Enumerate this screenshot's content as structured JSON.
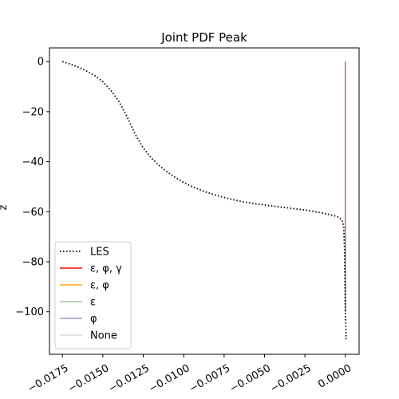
{
  "chart_data": {
    "type": "line",
    "title": "Joint PDF Peak",
    "xlabel": "",
    "ylabel": "z",
    "xlim": [
      -0.0183,
      0.00085
    ],
    "ylim": [
      -117,
      5.5
    ],
    "xticks": [
      -0.0175,
      -0.015,
      -0.0125,
      -0.01,
      -0.0075,
      -0.005,
      -0.0025,
      0.0
    ],
    "xtick_labels": [
      "−0.0175",
      "−0.0150",
      "−0.0125",
      "−0.0100",
      "−0.0075",
      "−0.0050",
      "−0.0025",
      "0.0000"
    ],
    "yticks": [
      0,
      -20,
      -40,
      -60,
      -80,
      -100
    ],
    "ytick_labels": [
      "0",
      "−20",
      "−40",
      "−60",
      "−80",
      "−100"
    ],
    "grid": false,
    "legend_position": "lower-left",
    "series": [
      {
        "name": "LES",
        "color": "#000000",
        "style": "dotted",
        "x": [
          -0.0175,
          -0.017,
          -0.0165,
          -0.016,
          -0.0155,
          -0.015,
          -0.0145,
          -0.014,
          -0.0135,
          -0.013,
          -0.0125,
          -0.012,
          -0.0115,
          -0.011,
          -0.0105,
          -0.01,
          -0.0095,
          -0.009,
          -0.0085,
          -0.008,
          -0.0075,
          -0.007,
          -0.0065,
          -0.006,
          -0.0055,
          -0.005,
          -0.0045,
          -0.004,
          -0.0035,
          -0.003,
          -0.0025,
          -0.002,
          -0.0015,
          -0.001,
          -0.0007,
          -0.0004,
          -0.0002,
          -0.0001,
          -5e-05,
          0.0,
          5e-05
        ],
        "y": [
          0,
          -1,
          -2.2,
          -3.8,
          -5.6,
          -8,
          -11.5,
          -16,
          -22,
          -29,
          -34.5,
          -38.5,
          -41.6,
          -44.2,
          -46.4,
          -48.3,
          -49.9,
          -51.2,
          -52.4,
          -53.4,
          -54.3,
          -55.1,
          -55.8,
          -56.4,
          -56.9,
          -57.3,
          -57.7,
          -58.1,
          -58.5,
          -58.9,
          -59.3,
          -59.8,
          -60.4,
          -61.1,
          -61.6,
          -62.2,
          -63.5,
          -66,
          -75,
          -100,
          -111
        ]
      },
      {
        "name": "ε, φ, γ",
        "color": "#ff2a1a",
        "style": "solid",
        "x": [
          0.0,
          0.0
        ],
        "y": [
          0,
          -100
        ]
      },
      {
        "name": "ε, φ",
        "color": "#ffb52e",
        "style": "solid",
        "x": [
          0.0,
          0.0
        ],
        "y": [
          0,
          -100
        ]
      },
      {
        "name": "ε",
        "color": "#a9d6a3",
        "style": "solid",
        "x": [
          0.0,
          0.0
        ],
        "y": [
          0,
          -100
        ]
      },
      {
        "name": "φ",
        "color": "#aaa6d6",
        "style": "solid",
        "x": [
          0.0,
          0.0
        ],
        "y": [
          0,
          -100
        ]
      },
      {
        "name": "None",
        "color": "#a89090",
        "legend_color": "#dddddd",
        "style": "solid",
        "x": [
          0.0,
          0.0
        ],
        "y": [
          0,
          -100
        ]
      }
    ]
  }
}
